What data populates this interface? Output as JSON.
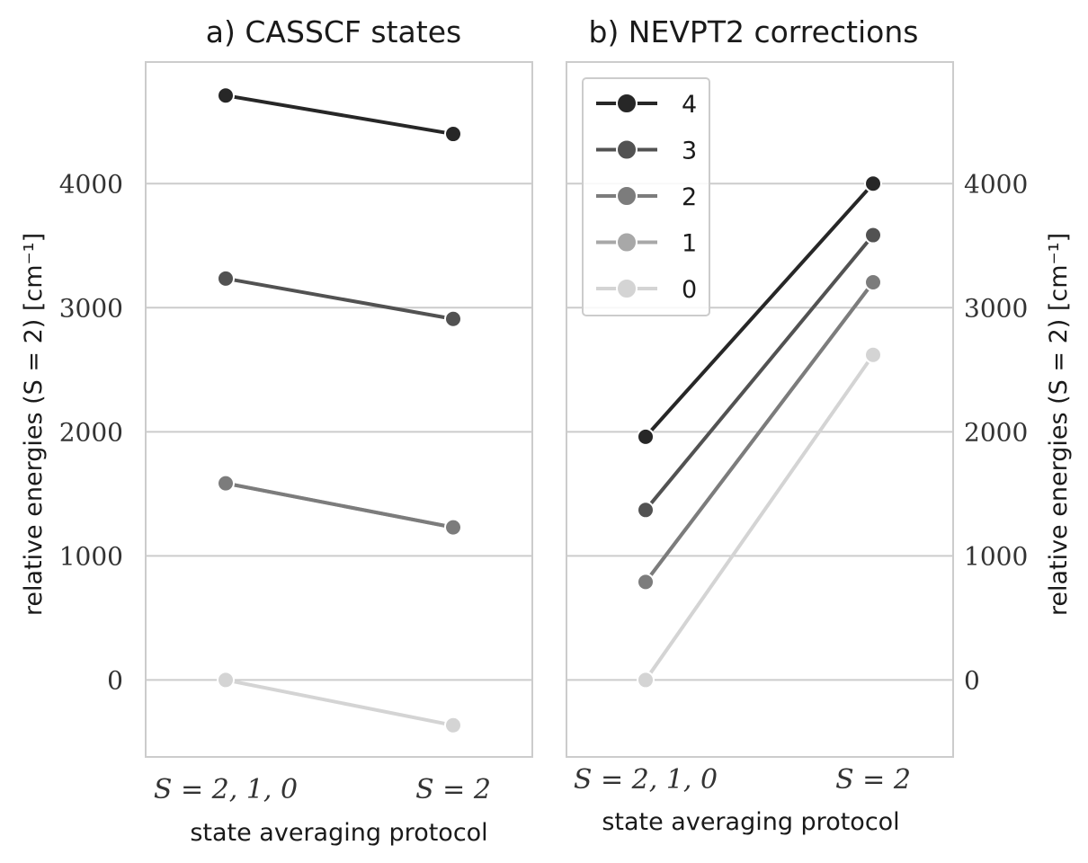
{
  "chart_data": [
    {
      "type": "line",
      "title": "a) CASSCF states",
      "xlabel": "state averaging protocol",
      "ylabel": "relative energies (S = 2) [cm⁻¹]",
      "categories": [
        "S = 2, 1, 0",
        "S = 2"
      ],
      "ylim": [
        -620,
        4980
      ],
      "yticks": [
        "0",
        "1000",
        "2000",
        "3000",
        "4000"
      ],
      "grid": "horizontal",
      "series": [
        {
          "name": "4",
          "color": "#272727",
          "values": [
            4710,
            4400
          ]
        },
        {
          "name": "3",
          "color": "#525252",
          "values": [
            3235,
            2910
          ]
        },
        {
          "name": "2",
          "color": "#7c7c7c",
          "values": [
            1585,
            1230
          ]
        },
        {
          "name": "1",
          "color": "#a8a8a8",
          "values": [
            1585,
            1230
          ]
        },
        {
          "name": "0",
          "color": "#d4d4d4",
          "values": [
            0,
            -365
          ]
        }
      ]
    },
    {
      "type": "line",
      "title": "b) NEVPT2 corrections",
      "xlabel": "state averaging protocol",
      "ylabel": "relative energies (S = 2) [cm⁻¹]",
      "categories": [
        "S = 2, 1, 0",
        "S = 2"
      ],
      "ylim": [
        -620,
        4980
      ],
      "yticks": [
        "0",
        "1000",
        "2000",
        "3000",
        "4000"
      ],
      "grid": "horizontal",
      "legend": "top-left",
      "legend_entries": [
        "4",
        "3",
        "2",
        "1",
        "0"
      ],
      "series": [
        {
          "name": "4",
          "color": "#272727",
          "values": [
            1960,
            4000
          ]
        },
        {
          "name": "3",
          "color": "#525252",
          "values": [
            1370,
            3585
          ]
        },
        {
          "name": "2",
          "color": "#7c7c7c",
          "values": [
            790,
            3205
          ]
        },
        {
          "name": "1",
          "color": "#a8a8a8",
          "values": [
            790,
            3205
          ]
        },
        {
          "name": "0",
          "color": "#d4d4d4",
          "values": [
            0,
            2620
          ]
        }
      ]
    }
  ]
}
